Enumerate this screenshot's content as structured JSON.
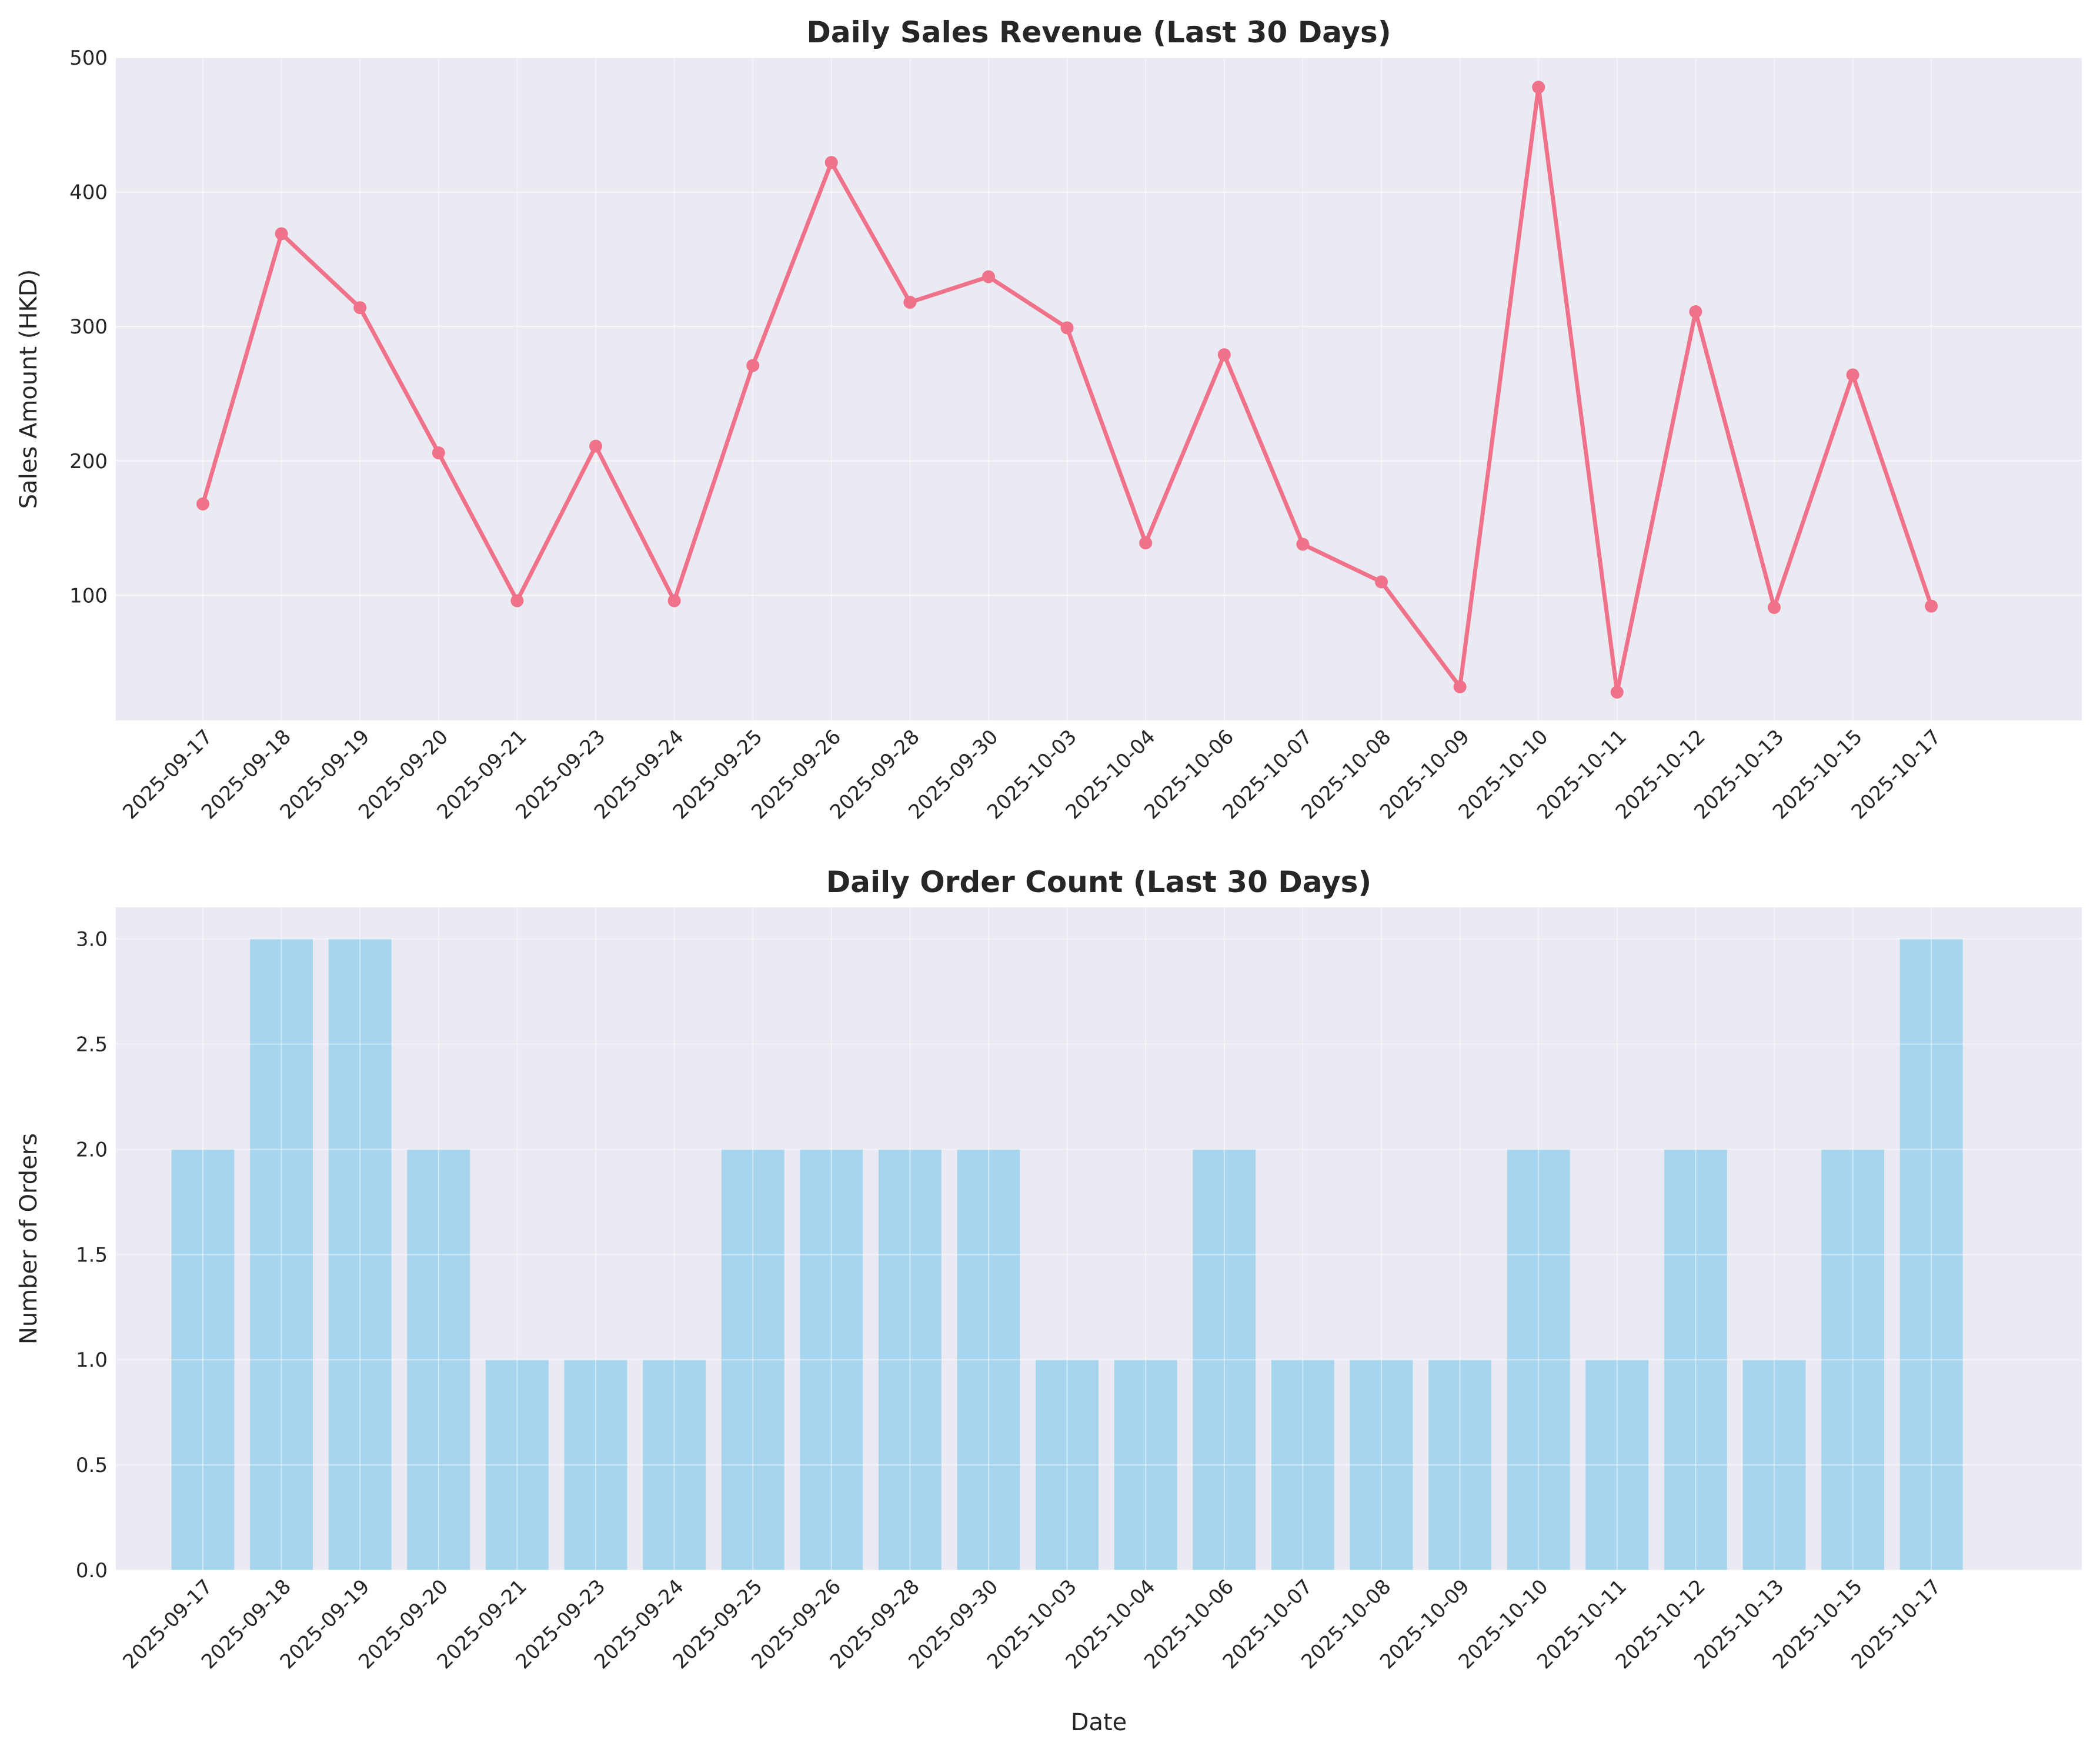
{
  "chart_data": [
    {
      "type": "line",
      "title": "Daily Sales Revenue (Last 30 Days)",
      "xlabel": "",
      "ylabel": "Sales Amount (HKD)",
      "ylim": [
        7,
        500
      ],
      "yticks": [
        100,
        200,
        300,
        400,
        500
      ],
      "grid": true,
      "color": "#f0718a",
      "categories": [
        "2025-09-17",
        "2025-09-18",
        "2025-09-19",
        "2025-09-20",
        "2025-09-21",
        "2025-09-23",
        "2025-09-24",
        "2025-09-25",
        "2025-09-26",
        "2025-09-28",
        "2025-09-30",
        "2025-10-03",
        "2025-10-04",
        "2025-10-06",
        "2025-10-07",
        "2025-10-08",
        "2025-10-09",
        "2025-10-10",
        "2025-10-11",
        "2025-10-12",
        "2025-10-13",
        "2025-10-15",
        "2025-10-17"
      ],
      "values": [
        168,
        369,
        314,
        206,
        96,
        211,
        96,
        271,
        422,
        318,
        337,
        299,
        139,
        279,
        138,
        110,
        32,
        478,
        28,
        311,
        91,
        264,
        92
      ]
    },
    {
      "type": "bar",
      "title": "Daily Order Count (Last 30 Days)",
      "xlabel": "Date",
      "ylabel": "Number of Orders",
      "ylim": [
        0,
        3.15
      ],
      "yticks": [
        "0.0",
        "0.5",
        "1.0",
        "1.5",
        "2.0",
        "2.5",
        "3.0"
      ],
      "grid": true,
      "color": "#a7d5ed",
      "categories": [
        "2025-09-17",
        "2025-09-18",
        "2025-09-19",
        "2025-09-20",
        "2025-09-21",
        "2025-09-23",
        "2025-09-24",
        "2025-09-25",
        "2025-09-26",
        "2025-09-28",
        "2025-09-30",
        "2025-10-03",
        "2025-10-04",
        "2025-10-06",
        "2025-10-07",
        "2025-10-08",
        "2025-10-09",
        "2025-10-10",
        "2025-10-11",
        "2025-10-12",
        "2025-10-13",
        "2025-10-15",
        "2025-10-17"
      ],
      "values": [
        2,
        3,
        3,
        2,
        1,
        1,
        1,
        2,
        2,
        2,
        2,
        1,
        1,
        2,
        1,
        1,
        1,
        2,
        1,
        2,
        1,
        2,
        3
      ]
    }
  ]
}
